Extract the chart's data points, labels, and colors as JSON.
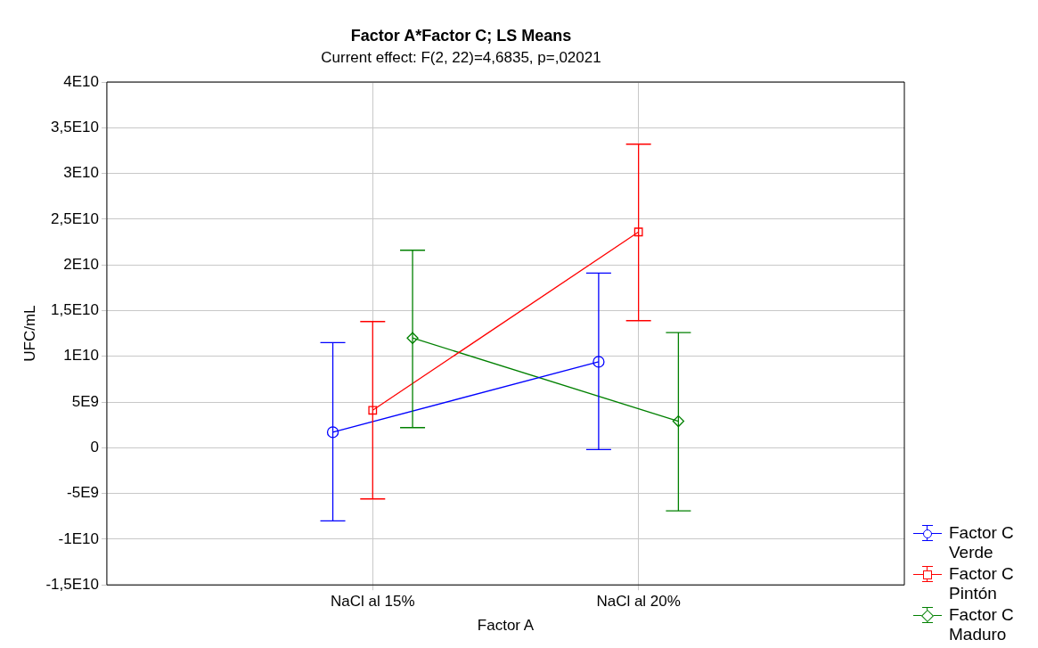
{
  "chart_data": {
    "type": "line",
    "title": "Factor A*Factor C; LS Means",
    "subtitle": "Current effect: F(2, 22)=4,6835, p=,02021",
    "xlabel": "Factor A",
    "ylabel": "UFC/mL",
    "categories": [
      "NaCl al 15%",
      "NaCl al 20%"
    ],
    "series": [
      {
        "name": "Factor C Verde",
        "color": "#0000ff",
        "marker": "circle",
        "values": [
          1700000000.0,
          9400000000.0
        ],
        "errors": [
          [
            -8000000000.0,
            11500000000.0
          ],
          [
            -200000000.0,
            19100000000.0
          ]
        ]
      },
      {
        "name": "Factor C Pintón",
        "color": "#ff0000",
        "marker": "square",
        "values": [
          4100000000.0,
          23600000000.0
        ],
        "errors": [
          [
            -5600000000.0,
            13800000000.0
          ],
          [
            13900000000.0,
            33200000000.0
          ]
        ]
      },
      {
        "name": "Factor C Maduro",
        "color": "#008000",
        "marker": "diamond",
        "values": [
          12000000000.0,
          2900000000.0
        ],
        "errors": [
          [
            2200000000.0,
            21600000000.0
          ],
          [
            -6900000000.0,
            12600000000.0
          ]
        ]
      }
    ],
    "ylim": [
      -15000000000.0,
      40000000000.0
    ],
    "yticks": [
      {
        "value": -15000000000.0,
        "label": "-1,5E10"
      },
      {
        "value": -10000000000.0,
        "label": "-1E10"
      },
      {
        "value": -5000000000.0,
        "label": "-5E9"
      },
      0,
      {
        "value": 5000000000.0,
        "label": "5E9"
      },
      {
        "value": 10000000000.0,
        "label": "1E10"
      },
      {
        "value": 15000000000.0,
        "label": "1,5E10"
      },
      {
        "value": 20000000000.0,
        "label": "2E10"
      },
      {
        "value": 25000000000.0,
        "label": "2,5E10"
      },
      {
        "value": 30000000000.0,
        "label": "3E10"
      },
      {
        "value": 35000000000.0,
        "label": "3,5E10"
      },
      {
        "value": 40000000000.0,
        "label": "4E10"
      }
    ],
    "grid": true,
    "legend": "bottom right"
  }
}
